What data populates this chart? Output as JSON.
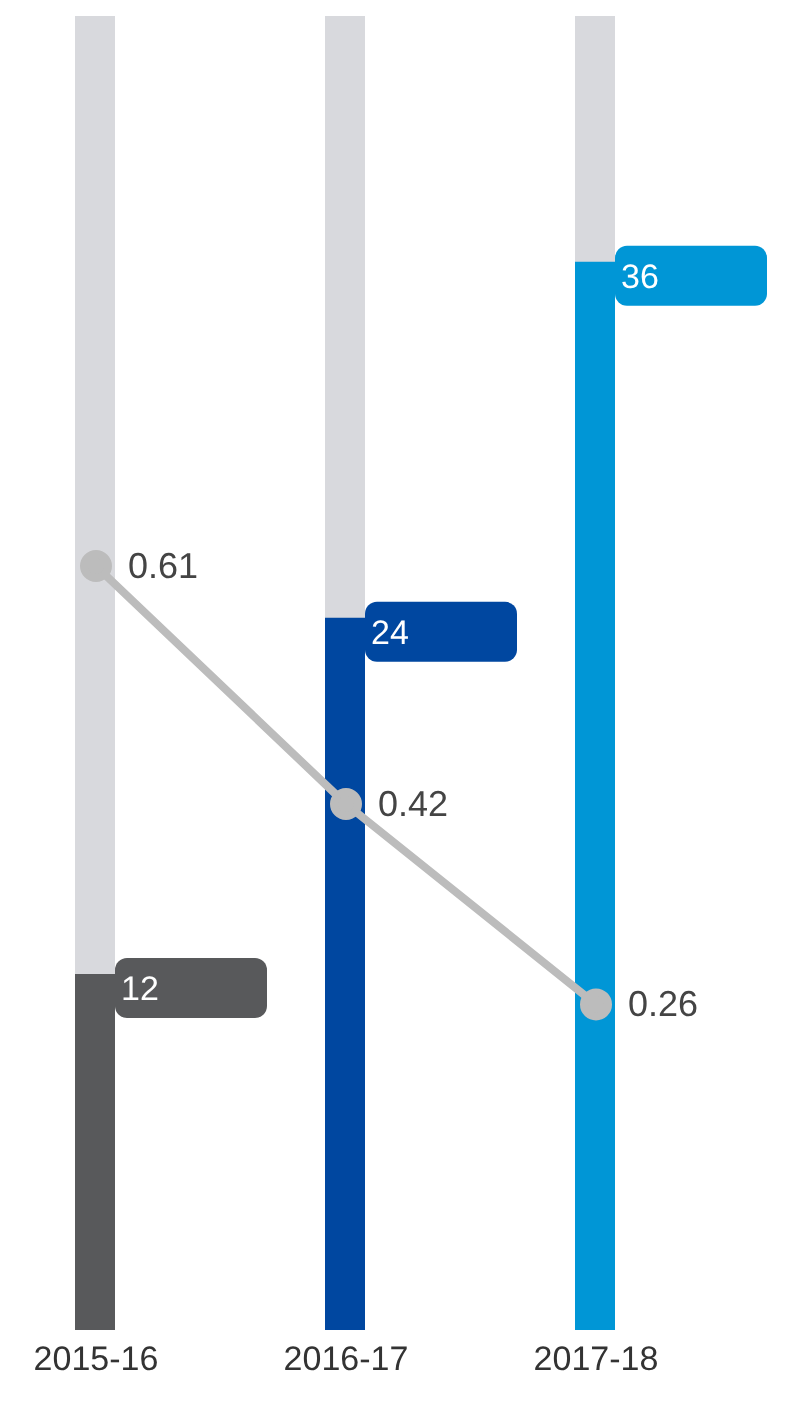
{
  "chart_data": {
    "type": "bar",
    "categories": [
      "2015-16",
      "2016-17",
      "2017-18"
    ],
    "series": [
      {
        "colors": [
          "#58595b",
          "#0047a0",
          "#0096d6"
        ],
        "values": [
          12,
          24,
          36
        ]
      },
      {
        "type": "line",
        "axis": "y2",
        "color": "#bcbcbc",
        "values": [
          0.61,
          0.42,
          0.26
        ]
      }
    ],
    "marker": "circle",
    "data_labels": true,
    "grid": false,
    "legend": false
  }
}
